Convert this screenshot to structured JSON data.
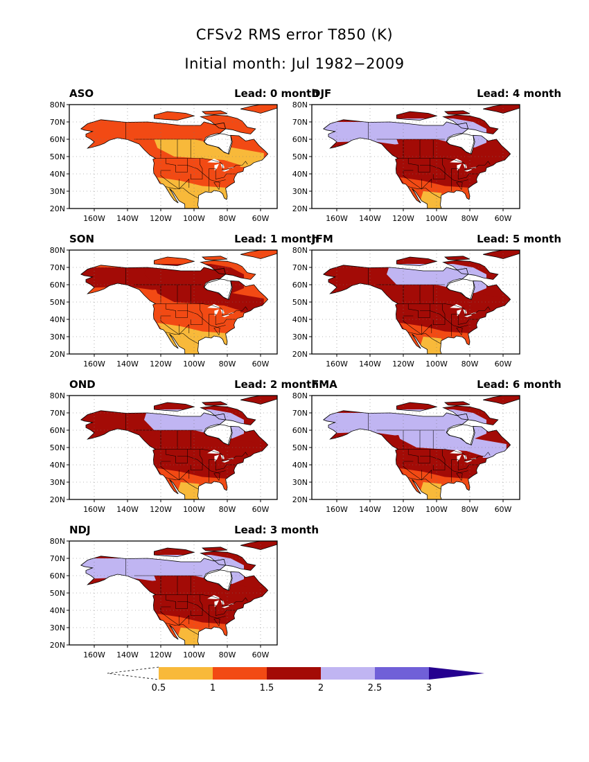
{
  "title": "CFSv2 RMS error T850 (K)",
  "subtitle": "Initial month: Jul 1982−2009",
  "x_ticks": [
    "160W",
    "140W",
    "120W",
    "100W",
    "80W",
    "60W"
  ],
  "y_ticks": [
    "80N",
    "70N",
    "60N",
    "50N",
    "40N",
    "30N",
    "20N"
  ],
  "colors": {
    "level_0_5_1": "#f8b93a",
    "level_1_1_5": "#f24a14",
    "level_1_5_2": "#a30b06",
    "level_2_2_5": "#c0b5f2",
    "level_2_5_3": "#7060d8",
    "level_above_3": "#25008f",
    "ocean": "#ffffff"
  },
  "panels": [
    {
      "season": "ASO",
      "lead": "Lead: 0 month",
      "dominant": [
        "#f24a14",
        "#f8b93a"
      ]
    },
    {
      "season": "DJF",
      "lead": "Lead: 4 month",
      "dominant": [
        "#a30b06",
        "#c0b5f2",
        "#f24a14",
        "#f8b93a"
      ]
    },
    {
      "season": "SON",
      "lead": "Lead: 1 month",
      "dominant": [
        "#a30b06",
        "#f24a14",
        "#f8b93a"
      ]
    },
    {
      "season": "JFM",
      "lead": "Lead: 5 month",
      "dominant": [
        "#a30b06",
        "#c0b5f2",
        "#f24a14",
        "#f8b93a"
      ]
    },
    {
      "season": "OND",
      "lead": "Lead: 2 month",
      "dominant": [
        "#a30b06",
        "#c0b5f2",
        "#f24a14",
        "#f8b93a"
      ]
    },
    {
      "season": "FMA",
      "lead": "Lead: 6 month",
      "dominant": [
        "#c0b5f2",
        "#a30b06",
        "#f24a14",
        "#f8b93a"
      ]
    },
    {
      "season": "NDJ",
      "lead": "Lead: 3 month",
      "dominant": [
        "#c0b5f2",
        "#a30b06",
        "#f24a14",
        "#f8b93a"
      ]
    }
  ],
  "colorbar": {
    "labels": [
      "0.5",
      "1",
      "1.5",
      "2",
      "2.5",
      "3"
    ],
    "colors": [
      "#f8b93a",
      "#f24a14",
      "#a30b06",
      "#c0b5f2",
      "#7060d8",
      "#25008f"
    ]
  }
}
